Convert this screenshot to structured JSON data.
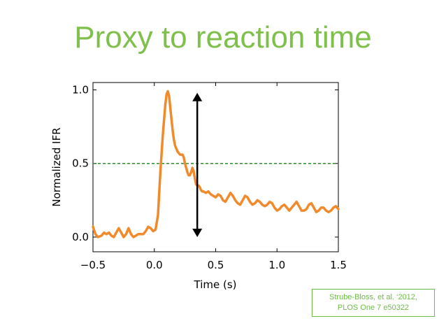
{
  "slide": {
    "title": "Proxy to reaction time",
    "citation_line1": "Strube-Bloss, et al. ‘2012,",
    "citation_line2": "PLOS One 7 e50322"
  },
  "colors": {
    "title": "#7ec04a",
    "series": "#f08a2a",
    "threshold": "#2e8b2e",
    "arrow": "#000000",
    "citation": "#6dbb45"
  },
  "chart_data": {
    "type": "line",
    "title": "",
    "xlabel": "Time (s)",
    "ylabel": "Normalized IFR",
    "xlim": [
      -0.5,
      1.5
    ],
    "ylim": [
      -0.1,
      1.05
    ],
    "xticks": [
      -0.5,
      0.0,
      0.5,
      1.0,
      1.5
    ],
    "xtick_labels": [
      "−0.5",
      "0.0",
      "0.5",
      "1.0",
      "1.5"
    ],
    "yticks": [
      0.0,
      0.5,
      1.0
    ],
    "ytick_labels": [
      "0.0",
      "0.5",
      "1.0"
    ],
    "grid": false,
    "series": [
      {
        "x": [
          -0.5,
          -0.48,
          -0.46,
          -0.43,
          -0.41,
          -0.39,
          -0.37,
          -0.35,
          -0.33,
          -0.31,
          -0.29,
          -0.27,
          -0.25,
          -0.23,
          -0.21,
          -0.19,
          -0.17,
          -0.15,
          -0.13,
          -0.11,
          -0.09,
          -0.07,
          -0.05,
          -0.03,
          -0.01,
          0.01,
          0.03,
          0.05,
          0.07,
          0.09,
          0.1,
          0.11,
          0.12,
          0.13,
          0.14,
          0.15,
          0.16,
          0.17,
          0.18,
          0.19,
          0.2,
          0.21,
          0.22,
          0.23,
          0.24,
          0.25,
          0.26,
          0.27,
          0.28,
          0.29,
          0.3,
          0.31,
          0.32,
          0.33,
          0.34,
          0.35,
          0.36,
          0.37,
          0.38,
          0.39,
          0.4,
          0.42,
          0.44,
          0.46,
          0.48,
          0.5,
          0.52,
          0.54,
          0.56,
          0.58,
          0.6,
          0.62,
          0.64,
          0.66,
          0.68,
          0.7,
          0.72,
          0.74,
          0.76,
          0.78,
          0.8,
          0.82,
          0.84,
          0.86,
          0.88,
          0.9,
          0.92,
          0.94,
          0.96,
          0.98,
          1.0,
          1.02,
          1.04,
          1.06,
          1.08,
          1.1,
          1.12,
          1.14,
          1.16,
          1.18,
          1.2,
          1.22,
          1.24,
          1.26,
          1.28,
          1.3,
          1.32,
          1.34,
          1.36,
          1.38,
          1.4,
          1.42,
          1.44,
          1.46,
          1.48,
          1.5
        ],
        "y": [
          0.07,
          0.02,
          0.0,
          0.01,
          0.03,
          0.02,
          0.03,
          0.01,
          0.0,
          0.03,
          0.06,
          0.03,
          0.0,
          0.02,
          0.06,
          0.02,
          0.0,
          0.01,
          0.02,
          0.02,
          0.02,
          0.04,
          0.07,
          0.06,
          0.04,
          0.05,
          0.15,
          0.45,
          0.7,
          0.9,
          0.97,
          0.99,
          0.96,
          0.88,
          0.8,
          0.72,
          0.66,
          0.62,
          0.6,
          0.58,
          0.57,
          0.56,
          0.56,
          0.56,
          0.54,
          0.5,
          0.47,
          0.44,
          0.42,
          0.42,
          0.44,
          0.47,
          0.45,
          0.4,
          0.36,
          0.35,
          0.35,
          0.34,
          0.32,
          0.31,
          0.31,
          0.3,
          0.31,
          0.29,
          0.28,
          0.27,
          0.29,
          0.28,
          0.25,
          0.24,
          0.27,
          0.3,
          0.28,
          0.25,
          0.23,
          0.22,
          0.25,
          0.28,
          0.27,
          0.24,
          0.22,
          0.23,
          0.25,
          0.24,
          0.22,
          0.21,
          0.22,
          0.24,
          0.23,
          0.2,
          0.18,
          0.19,
          0.21,
          0.22,
          0.2,
          0.18,
          0.2,
          0.22,
          0.24,
          0.21,
          0.18,
          0.18,
          0.19,
          0.22,
          0.23,
          0.2,
          0.17,
          0.18,
          0.2,
          0.2,
          0.18,
          0.17,
          0.18,
          0.2,
          0.21,
          0.19
        ],
        "color": "#f08a2a"
      }
    ],
    "threshold": {
      "y": 0.5,
      "style": "dashed",
      "color": "#2e8b2e"
    },
    "arrow": {
      "x": 0.35,
      "y_from": 0.0,
      "y_to": 0.98,
      "style": "double-headed"
    }
  }
}
